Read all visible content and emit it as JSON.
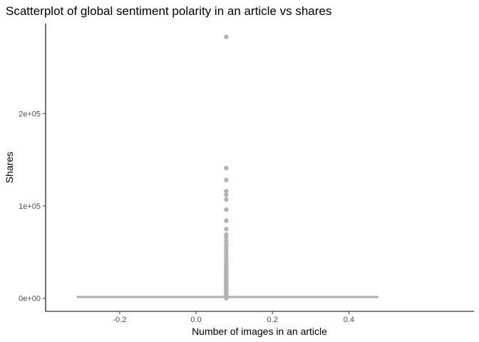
{
  "chart_data": {
    "type": "scatter",
    "title": "Scatterplot of global sentiment polarity in an article vs shares",
    "xlabel": "Number of images in an article",
    "ylabel": "Shares",
    "xlim": [
      -0.3939,
      0.7278
    ],
    "ylim": [
      -14165,
      297465
    ],
    "x_ticks": [
      {
        "value": -0.2,
        "label": "-0.2"
      },
      {
        "value": 0.0,
        "label": "0.0"
      },
      {
        "value": 0.2,
        "label": "0.2"
      },
      {
        "value": 0.4,
        "label": "0.4"
      }
    ],
    "y_ticks": [
      {
        "value": 0,
        "label": "0e+00"
      },
      {
        "value": 100000,
        "label": "1e+05"
      },
      {
        "value": 200000,
        "label": "2e+05"
      }
    ],
    "grid": false,
    "legend": "none",
    "point_color": "#b3b3b3",
    "baseline": {
      "x_start": -0.31,
      "x_end": 0.475,
      "y": 1400
    },
    "point_column_x": 0.079,
    "column_y_range": [
      0,
      30000
    ],
    "outliers": [
      {
        "x": 0.079,
        "y": 283000
      },
      {
        "x": 0.079,
        "y": 141000
      },
      {
        "x": 0.079,
        "y": 128000
      },
      {
        "x": 0.079,
        "y": 116000
      },
      {
        "x": 0.079,
        "y": 112000
      },
      {
        "x": 0.079,
        "y": 107000
      },
      {
        "x": 0.079,
        "y": 96000
      },
      {
        "x": 0.079,
        "y": 84000
      },
      {
        "x": 0.079,
        "y": 75000
      },
      {
        "x": 0.079,
        "y": 69000
      },
      {
        "x": 0.079,
        "y": 66000
      },
      {
        "x": 0.079,
        "y": 62000
      },
      {
        "x": 0.079,
        "y": 58000
      },
      {
        "x": 0.079,
        "y": 55000
      },
      {
        "x": 0.079,
        "y": 52000
      },
      {
        "x": 0.079,
        "y": 49000
      },
      {
        "x": 0.079,
        "y": 46000
      },
      {
        "x": 0.079,
        "y": 43000
      },
      {
        "x": 0.079,
        "y": 40000
      },
      {
        "x": 0.079,
        "y": 37000
      },
      {
        "x": 0.079,
        "y": 34000
      },
      {
        "x": 0.079,
        "y": 32000
      }
    ]
  }
}
